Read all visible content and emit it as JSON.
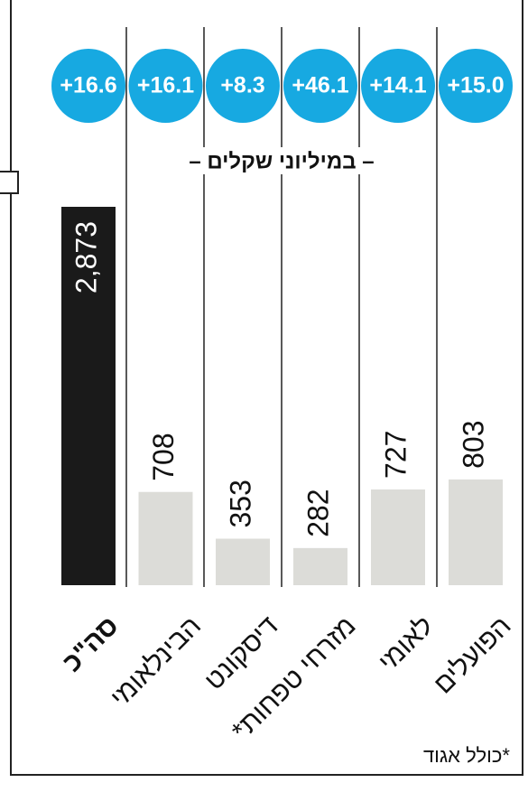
{
  "chart_data": {
    "type": "bar",
    "subtitle": "– במיליוני שקלים –",
    "categories": [
      "סה\"כ",
      "הבינלאומי",
      "דיסקונט",
      "מזרחי טפחות*",
      "לאומי",
      "הפועלים"
    ],
    "values": [
      2873,
      708,
      353,
      282,
      727,
      803
    ],
    "value_labels": [
      "2,873",
      "708",
      "353",
      "282",
      "727",
      "803"
    ],
    "changes": [
      16.6,
      16.1,
      8.3,
      46.1,
      14.1,
      15.0
    ],
    "change_labels": [
      "+16.6",
      "+16.1",
      "+8.3",
      "+46.1",
      "+14.1",
      "+15.0"
    ],
    "colors": [
      "#1a1a1a",
      "#dcdcd8",
      "#dcdcd8",
      "#dcdcd8",
      "#dcdcd8",
      "#dcdcd8"
    ],
    "change_color": "#17a9e1",
    "footnote": "*כולל אגוד"
  }
}
